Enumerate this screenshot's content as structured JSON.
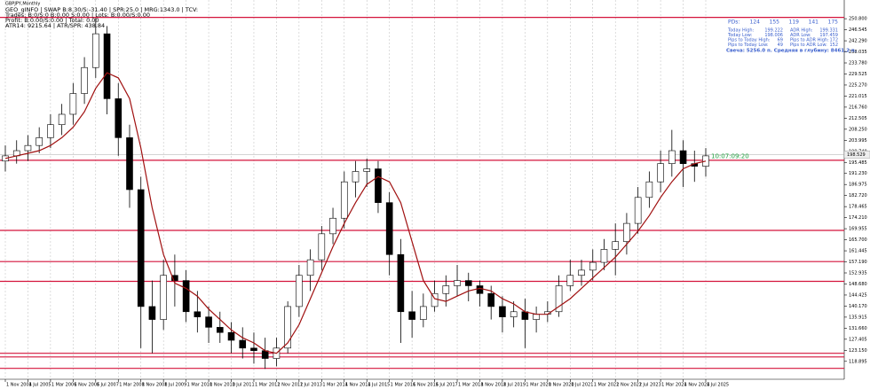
{
  "chart_data": {
    "type": "candlestick",
    "symbol": "GBPJPY,Monthly",
    "info_lines": [
      "GEO_gINFO | SWAP B:8.30/S:-31.40 | SPR:25.0 | MRG:1343.0 | TCV:",
      "Trades: B:0/S:0 B:0.00 S:0.00 | Lots: B:0.00/S:0.00",
      "Profit: B:0.00/S:0.00 | Total: 0.00",
      "ATR14: 9215.64 | ATR/SPR: 438.84"
    ],
    "panel": {
      "pds_label": "PDs:",
      "pds": [
        "124",
        "155",
        "119",
        "141",
        "175"
      ],
      "rows": [
        [
          "Today High:",
          "199.222",
          "ADR High:",
          "199.331"
        ],
        [
          "Today Low:",
          "198.006",
          "ADR Low:",
          "197.459"
        ],
        [
          "Pips to Today High:",
          "69",
          "Pips to ADR High:",
          "172"
        ],
        [
          "Pips to Today Low:",
          "49",
          "Pips to ADR Low:",
          "152"
        ]
      ],
      "candle_line": "Свеча: 5256.0 п.  Средняя в глубину: 8461.2 п."
    },
    "timer": "10:07:09:20",
    "price_label": "198.529",
    "price": 198.529,
    "categories": [
      "1 Nov 2004",
      null,
      "1 Jul 2005",
      null,
      "1 Mar 2006",
      null,
      "1 Nov 2006",
      null,
      "1 Jul 2007",
      null,
      "1 Mar 2008",
      null,
      "1 Nov 2008",
      null,
      "1 Jul 2009",
      null,
      "1 Mar 2010",
      null,
      "1 Nov 2010",
      null,
      "1 Jul 2011",
      null,
      "1 Mar 2012",
      null,
      "1 Nov 2012",
      null,
      "1 Jul 2013",
      null,
      "1 Mar 2014",
      null,
      "1 Nov 2014",
      null,
      "1 Jul 2015",
      null,
      "1 Mar 2016",
      null,
      "1 Nov 2016",
      null,
      "1 Jul 2017",
      null,
      "1 Mar 2018",
      null,
      "1 Nov 2018",
      null,
      "1 Jul 2019",
      null,
      "1 Mar 2020",
      null,
      "1 Nov 2020",
      null,
      "1 Jul 2021",
      null,
      "1 Mar 2022",
      null,
      "1 Nov 2022",
      null,
      "1 Jul 2023",
      null,
      "1 Mar 2024",
      null,
      "1 Nov 2024",
      null,
      "1 Jul 2025"
    ],
    "ohlc": [
      [
        196,
        202,
        192,
        198
      ],
      [
        198,
        204,
        195,
        200
      ],
      [
        200,
        206,
        196,
        202
      ],
      [
        202,
        209,
        199,
        205
      ],
      [
        205,
        214,
        201,
        210
      ],
      [
        210,
        218,
        206,
        214
      ],
      [
        214,
        226,
        210,
        222
      ],
      [
        222,
        236,
        218,
        232
      ],
      [
        232,
        251,
        228,
        245
      ],
      [
        245,
        248,
        214,
        220
      ],
      [
        220,
        226,
        198,
        205
      ],
      [
        205,
        210,
        178,
        185
      ],
      [
        185,
        190,
        124,
        140
      ],
      [
        140,
        150,
        122,
        135
      ],
      [
        135,
        158,
        131,
        152
      ],
      [
        152,
        160,
        140,
        150
      ],
      [
        150,
        154,
        134,
        138
      ],
      [
        138,
        146,
        130,
        136
      ],
      [
        136,
        140,
        126,
        132
      ],
      [
        132,
        138,
        126,
        130
      ],
      [
        130,
        134,
        122,
        127
      ],
      [
        127,
        132,
        120,
        124
      ],
      [
        124,
        130,
        118,
        123
      ],
      [
        123,
        128,
        116,
        120
      ],
      [
        120,
        128,
        117,
        124
      ],
      [
        124,
        142,
        122,
        140
      ],
      [
        140,
        156,
        136,
        152
      ],
      [
        152,
        162,
        146,
        158
      ],
      [
        158,
        171,
        154,
        168
      ],
      [
        168,
        178,
        164,
        174
      ],
      [
        174,
        192,
        170,
        188
      ],
      [
        188,
        196,
        182,
        192
      ],
      [
        192,
        197,
        186,
        193
      ],
      [
        193,
        196,
        176,
        180
      ],
      [
        180,
        184,
        152,
        160
      ],
      [
        160,
        166,
        126,
        138
      ],
      [
        138,
        146,
        128,
        135
      ],
      [
        135,
        145,
        132,
        140
      ],
      [
        140,
        150,
        138,
        145
      ],
      [
        145,
        152,
        140,
        148
      ],
      [
        148,
        156,
        144,
        150
      ],
      [
        150,
        153,
        142,
        148
      ],
      [
        148,
        150,
        140,
        145
      ],
      [
        145,
        148,
        135,
        140
      ],
      [
        140,
        144,
        130,
        136
      ],
      [
        136,
        142,
        132,
        138
      ],
      [
        138,
        143,
        124,
        135
      ],
      [
        135,
        140,
        130,
        137
      ],
      [
        137,
        142,
        134,
        138
      ],
      [
        138,
        152,
        136,
        148
      ],
      [
        148,
        158,
        146,
        152
      ],
      [
        152,
        158,
        148,
        154
      ],
      [
        154,
        162,
        150,
        157
      ],
      [
        157,
        166,
        154,
        162
      ],
      [
        162,
        172,
        152,
        165
      ],
      [
        165,
        176,
        160,
        172
      ],
      [
        172,
        186,
        168,
        182
      ],
      [
        182,
        192,
        178,
        188
      ],
      [
        188,
        200,
        184,
        195
      ],
      [
        195,
        208,
        190,
        200
      ],
      [
        200,
        204,
        186,
        195
      ],
      [
        195,
        200,
        188,
        194
      ],
      [
        194,
        201,
        190,
        198
      ]
    ],
    "ma": [
      197,
      198,
      199,
      200,
      202,
      205,
      209,
      215,
      224,
      230,
      228,
      220,
      201,
      178,
      160,
      149,
      147,
      144,
      139,
      135,
      131,
      128,
      126,
      123,
      122,
      126,
      133,
      143,
      153,
      163,
      172,
      180,
      187,
      190,
      188,
      180,
      165,
      150,
      143,
      142,
      144,
      146,
      147,
      146,
      143,
      141,
      138,
      137,
      137,
      140,
      143,
      147,
      151,
      155,
      159,
      164,
      169,
      175,
      182,
      188,
      193,
      195,
      196
    ],
    "ma_color": "#a01010",
    "levels": [
      251.3,
      196.3,
      169.3,
      157.3,
      149.7,
      122.0,
      120.6,
      116.2
    ],
    "level_color": "#d4143c",
    "ylim": [
      112,
      258
    ],
    "yticks": [
      118.895,
      {
        "value": 123.15,
        "label": "123.150"
      },
      127.405,
      {
        "value": 131.66,
        "label": "131.660"
      },
      135.915,
      {
        "value": 140.17,
        "label": "140.170"
      },
      144.425,
      {
        "value": 148.68,
        "label": "148.680"
      },
      152.935,
      {
        "value": 157.19,
        "label": "157.190"
      },
      161.445,
      {
        "value": 165.7,
        "label": "165.700"
      },
      169.955,
      {
        "value": 174.21,
        "label": "174.210"
      },
      178.465,
      {
        "value": 182.72,
        "label": "182.720"
      },
      186.975,
      {
        "value": 191.23,
        "label": "191.230"
      },
      195.485,
      {
        "value": 199.74,
        "label": "199.740"
      },
      203.995,
      {
        "value": 208.25,
        "label": "208.250"
      },
      212.505,
      {
        "value": 216.76,
        "label": "216.760"
      },
      221.015,
      {
        "value": 225.27,
        "label": "225.270"
      },
      229.525,
      {
        "value": 233.78,
        "label": "233.780"
      },
      238.035,
      {
        "value": 242.29,
        "label": "242.290"
      },
      246.545,
      {
        "value": 250.8,
        "label": "250.800"
      }
    ],
    "grid": true
  }
}
